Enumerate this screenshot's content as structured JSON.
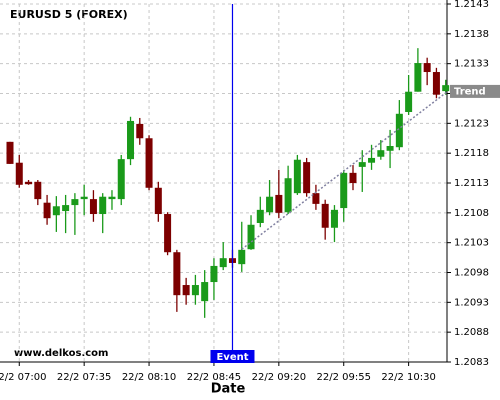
{
  "chart_data": {
    "type": "candlestick",
    "title": "EURUSD 5 (FOREX)",
    "watermark": "www.delkos.com",
    "x_label": "Date",
    "categories": [
      null,
      "22/2 07:00",
      null,
      null,
      null,
      null,
      null,
      null,
      "22/2 07:35",
      null,
      null,
      null,
      null,
      null,
      null,
      "22/2 08:10",
      null,
      null,
      null,
      null,
      null,
      null,
      "22/2 08:45",
      null,
      null,
      null,
      null,
      null,
      null,
      "22/2 09:20",
      null,
      null,
      null,
      null,
      null,
      null,
      "22/2 09:55",
      null,
      null,
      null,
      null,
      null,
      null,
      "22/2 10:30",
      null,
      null,
      null,
      null
    ],
    "open": [
      1.21199,
      1.21164,
      1.21132,
      1.21132,
      1.21097,
      1.21076,
      1.21083,
      1.21093,
      1.21103,
      1.21103,
      1.21078,
      1.21103,
      1.21103,
      1.2117,
      1.21229,
      1.21205,
      1.21122,
      1.21078,
      1.21014,
      1.20959,
      1.20942,
      1.20932,
      1.20964,
      1.20989,
      1.21004,
      1.20994,
      1.21019,
      1.21063,
      1.21081,
      1.2111,
      1.21081,
      1.21113,
      1.21165,
      1.21113,
      1.21095,
      1.21055,
      1.21088,
      1.21147,
      1.21157,
      1.21164,
      1.21174,
      1.21184,
      1.2119,
      1.21249,
      1.21283,
      1.21331,
      1.21316,
      1.21284
    ],
    "high": [
      1.21199,
      1.21177,
      1.21135,
      1.21135,
      1.2111,
      1.21108,
      1.2111,
      1.21113,
      1.21127,
      1.21118,
      1.21113,
      1.21118,
      1.21177,
      1.21241,
      1.21239,
      1.2121,
      1.21132,
      1.21081,
      1.21018,
      1.20971,
      1.20976,
      1.20984,
      1.21004,
      1.21031,
      1.21018,
      1.21065,
      1.21076,
      1.21107,
      1.21135,
      1.21152,
      1.21159,
      1.21177,
      1.21172,
      1.21127,
      1.21102,
      1.21093,
      1.21152,
      1.2116,
      1.21185,
      1.21194,
      1.21202,
      1.21219,
      1.21269,
      1.21311,
      1.21356,
      1.2134,
      1.21323,
      1.21303
    ],
    "low": [
      1.21162,
      1.21122,
      1.21127,
      1.21093,
      1.2106,
      1.21048,
      1.21046,
      1.21043,
      1.21076,
      1.21065,
      1.21046,
      1.21085,
      1.21093,
      1.2116,
      1.21194,
      1.21118,
      1.21065,
      1.21009,
      1.20914,
      1.20926,
      1.20926,
      1.20904,
      1.20934,
      1.20984,
      1.20988,
      1.20981,
      1.21018,
      1.21056,
      1.21076,
      1.21071,
      1.21078,
      1.2111,
      1.21107,
      1.21085,
      1.21035,
      1.21031,
      1.21065,
      1.21118,
      1.21115,
      1.21152,
      1.21169,
      1.21155,
      1.21185,
      1.21244,
      1.21283,
      1.21294,
      1.21272,
      1.21278
    ],
    "close": [
      1.21162,
      1.21127,
      1.21128,
      1.21103,
      1.21071,
      1.21091,
      1.21093,
      1.21103,
      1.21107,
      1.21078,
      1.21107,
      1.21107,
      1.2117,
      1.21234,
      1.21205,
      1.21122,
      1.21078,
      1.21014,
      1.20942,
      1.20942,
      1.20959,
      1.20964,
      1.20991,
      1.21004,
      1.20996,
      1.21018,
      1.2106,
      1.21085,
      1.21107,
      1.2108,
      1.21138,
      1.21169,
      1.21113,
      1.21095,
      1.21055,
      1.21085,
      1.21147,
      1.2113,
      1.21165,
      1.21172,
      1.21185,
      1.21192,
      1.21246,
      1.21283,
      1.21331,
      1.21316,
      1.21278,
      1.21294
    ],
    "up_color": "#1a9a1a",
    "down_color": "#7d0000",
    "ylim": [
      1.2083,
      1.2143
    ],
    "yticks": [
      1.2083,
      1.2088,
      1.2093,
      1.2098,
      1.2103,
      1.2108,
      1.2113,
      1.2118,
      1.2123,
      1.2128,
      1.2133,
      1.2138,
      1.2143
    ],
    "grid": true,
    "event": {
      "label": "Event",
      "index": 24,
      "color": "#0000ee"
    },
    "trend": {
      "label": "Trend",
      "start_index": 25,
      "start_value": 1.21019,
      "end_index": 47,
      "end_value": 1.21281,
      "color": "#8080a0"
    }
  }
}
